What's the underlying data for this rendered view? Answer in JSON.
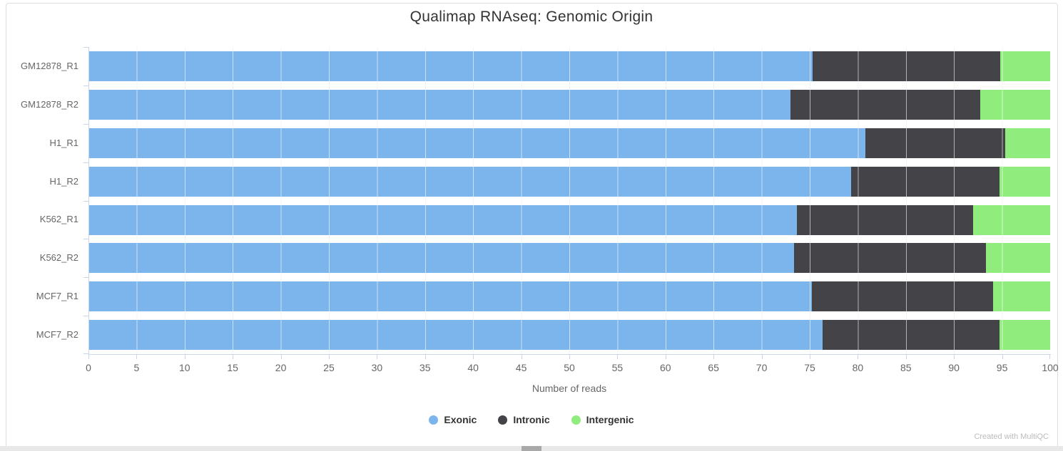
{
  "title": "Qualimap RNAseq: Genomic Origin",
  "watermark": "Created with MultiQC",
  "colors": {
    "exonic": "#7cb5ec",
    "intronic": "#434348",
    "intergenic": "#90ed7d",
    "axis_line": "#ccd6eb",
    "gridline": "#e6e6e6",
    "muted_text": "#666666",
    "legend_text": "#333333"
  },
  "chart_data": {
    "type": "bar",
    "orientation": "horizontal",
    "stacked": true,
    "title": "Qualimap RNAseq: Genomic Origin",
    "xlabel": "Number of reads",
    "ylabel": "",
    "xlim": [
      0,
      100
    ],
    "xticks": [
      0,
      5,
      10,
      15,
      20,
      25,
      30,
      35,
      40,
      45,
      50,
      55,
      60,
      65,
      70,
      75,
      80,
      85,
      90,
      95,
      100
    ],
    "grid": true,
    "legend_position": "bottom",
    "categories": [
      "GM12878_R1",
      "GM12878_R2",
      "H1_R1",
      "H1_R2",
      "K562_R1",
      "K562_R2",
      "MCF7_R1",
      "MCF7_R2"
    ],
    "series": [
      {
        "name": "Exonic",
        "color": "#7cb5ec",
        "values": [
          75.3,
          73.0,
          80.8,
          79.3,
          73.7,
          73.4,
          75.2,
          76.3
        ]
      },
      {
        "name": "Intronic",
        "color": "#434348",
        "values": [
          19.5,
          19.7,
          14.5,
          15.4,
          18.3,
          19.9,
          18.9,
          18.4
        ]
      },
      {
        "name": "Intergenic",
        "color": "#90ed7d",
        "values": [
          5.2,
          7.3,
          4.7,
          5.3,
          8.0,
          6.7,
          5.9,
          5.3
        ]
      }
    ]
  }
}
